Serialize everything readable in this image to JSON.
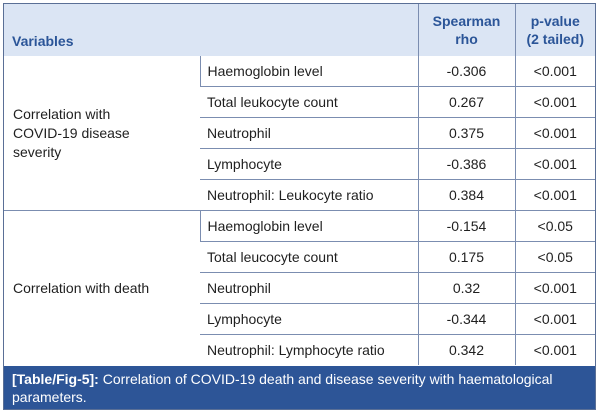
{
  "header": {
    "variables": "Variables",
    "rho_line1": "Spearman",
    "rho_line2": "rho",
    "p_line1": "p-value",
    "p_line2": "(2 tailed)"
  },
  "groups": [
    {
      "label_lines": [
        "Correlation with",
        "COVID-19 disease",
        "severity"
      ],
      "rows": [
        {
          "parameter": "Haemoglobin level",
          "rho": "-0.306",
          "p": "<0.001"
        },
        {
          "parameter": "Total leukocyte count",
          "rho": "0.267",
          "p": "<0.001"
        },
        {
          "parameter": "Neutrophil",
          "rho": "0.375",
          "p": "<0.001"
        },
        {
          "parameter": "Lymphocyte",
          "rho": "-0.386",
          "p": "<0.001"
        },
        {
          "parameter": "Neutrophil: Leukocyte ratio",
          "rho": "0.384",
          "p": "<0.001"
        }
      ]
    },
    {
      "label_lines": [
        "Correlation with death"
      ],
      "rows": [
        {
          "parameter": "Haemoglobin level",
          "rho": "-0.154",
          "p": "<0.05"
        },
        {
          "parameter": "Total leucocyte count",
          "rho": "0.175",
          "p": "<0.05"
        },
        {
          "parameter": "Neutrophil",
          "rho": "0.32",
          "p": "<0.001"
        },
        {
          "parameter": "Lymphocyte",
          "rho": "-0.344",
          "p": "<0.001"
        },
        {
          "parameter": "Neutrophil: Lymphocyte ratio",
          "rho": "0.342",
          "p": "<0.001"
        }
      ]
    }
  ],
  "caption": {
    "label": "[Table/Fig-5]:",
    "text": "Correlation of COVID-19 death and disease severity with haematological parameters."
  }
}
